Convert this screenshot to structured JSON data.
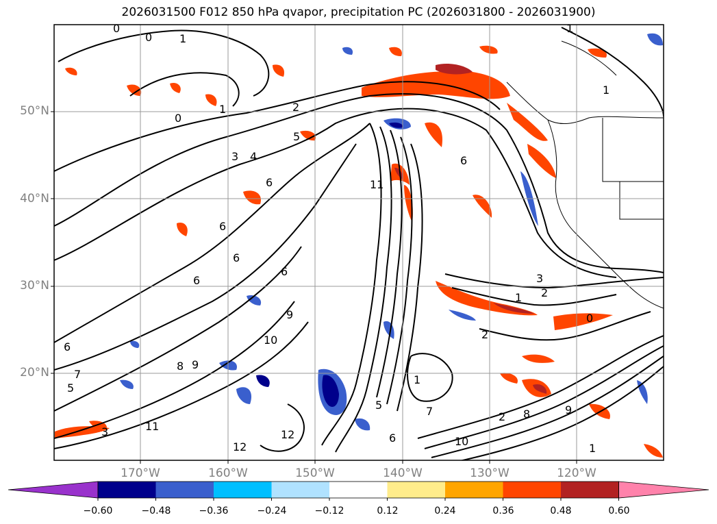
{
  "title": "2026031500 F012 850 hPa qvapor, precipitation PC (2026031800 - 2026031900)",
  "map": {
    "lat_labels": [
      "50°N",
      "40°N",
      "30°N",
      "20°N"
    ],
    "lon_labels": [
      "170°W",
      "160°W",
      "150°W",
      "140°W",
      "130°W",
      "120°W"
    ]
  },
  "colorbar": {
    "colors": [
      "#9932cc",
      "#00008b",
      "#3a5fcd",
      "#00bfff",
      "#b0e2ff",
      "#ffffff",
      "#ffec8b",
      "#ffa500",
      "#ff4500",
      "#b22222",
      "#ff82ab"
    ],
    "ticks": [
      "−0.60",
      "−0.48",
      "−0.36",
      "−0.24",
      "−0.12",
      "0.12",
      "0.24",
      "0.36",
      "0.48",
      "0.60"
    ]
  },
  "contour_labels": [
    "0",
    "1",
    "0",
    "0",
    "1",
    "2",
    "3",
    "4",
    "5",
    "6",
    "6",
    "6",
    "6",
    "1",
    "2",
    "3",
    "1",
    "2",
    "6",
    "6",
    "8",
    "9",
    "9",
    "10",
    "7",
    "5",
    "6",
    "1",
    "5",
    "7",
    "6",
    "11",
    "12",
    "12",
    "3",
    "1",
    "9",
    "10",
    "11",
    "2",
    "1",
    "0",
    "8"
  ]
}
